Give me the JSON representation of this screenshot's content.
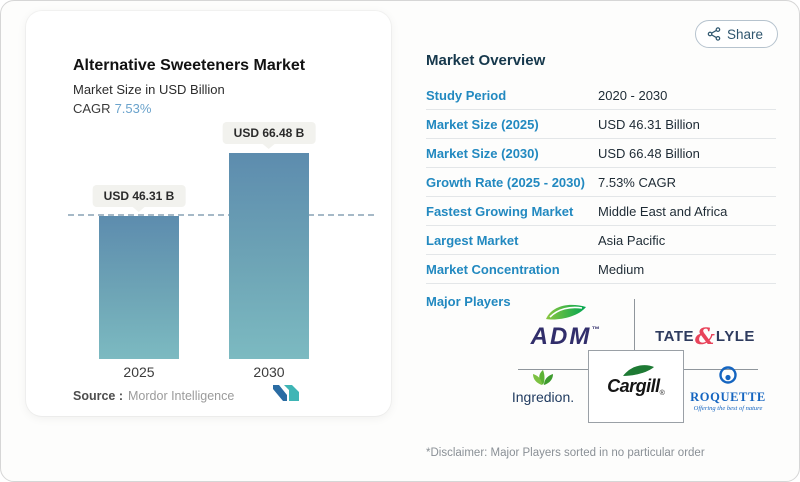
{
  "share": {
    "label": "Share"
  },
  "chart": {
    "title": "Alternative Sweeteners Market",
    "subtitle": "Market Size in USD Billion",
    "cagr_label": "CAGR",
    "cagr_value": "7.53%",
    "source_label": "Source :",
    "source_value": "Mordor Intelligence"
  },
  "chart_data": {
    "type": "bar",
    "categories": [
      "2025",
      "2030"
    ],
    "values": [
      46.31,
      66.48
    ],
    "bar_labels": [
      "USD 46.31 B",
      "USD 66.48 B"
    ],
    "title": "Alternative Sweeteners Market",
    "xlabel": "",
    "ylabel": "Market Size in USD Billion",
    "unit": "USD Billion",
    "cagr": "7.53%",
    "reference_line": 46.31,
    "grid": false,
    "legend": "none",
    "bar_color_top": "#5d8cae",
    "bar_color_bottom": "#7cbac1"
  },
  "overview": {
    "heading": "Market Overview",
    "rows": [
      {
        "label": "Study Period",
        "value": "2020 - 2030"
      },
      {
        "label": "Market Size (2025)",
        "value": "USD 46.31 Billion"
      },
      {
        "label": "Market Size (2030)",
        "value": "USD 66.48 Billion"
      },
      {
        "label": "Growth Rate (2025 - 2030)",
        "value": "7.53% CAGR"
      },
      {
        "label": "Fastest Growing Market",
        "value": "Middle East and Africa"
      },
      {
        "label": "Largest Market",
        "value": "Asia Pacific"
      },
      {
        "label": "Market Concentration",
        "value": "Medium"
      }
    ]
  },
  "players": {
    "heading": "Major Players",
    "names": [
      "ADM",
      "Tate & Lyle",
      "Ingredion",
      "Cargill",
      "Roquette"
    ],
    "adm_text": "ADM",
    "tate_left": "TATE",
    "tate_amp": "&",
    "tate_right": "LYLE",
    "ingredion_text": "Ingredion.",
    "cargill_text": "Cargill",
    "roquette_text": "ROQUETTE",
    "roquette_tagline": "Offering the best of nature"
  },
  "disclaimer": "*Disclaimer: Major Players sorted in no particular order",
  "colors": {
    "accent_blue": "#2289c0",
    "heading_dark": "#16384c",
    "cagr_blue": "#6ba3cc",
    "bar_top": "#5d8cae",
    "bar_bottom": "#7cbac1",
    "tate_red": "#e8435a",
    "adm_navy": "#312e6b",
    "roquette_blue": "#1565c0",
    "logo_green": "#2aa84a"
  }
}
